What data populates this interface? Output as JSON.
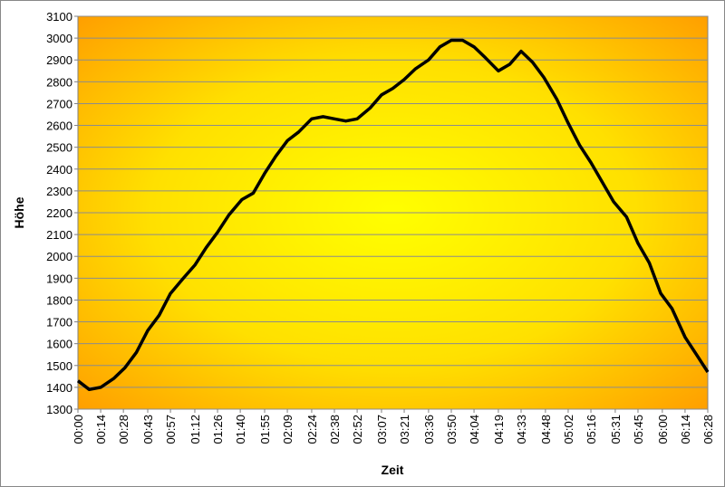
{
  "chart_data": {
    "type": "line",
    "xlabel": "Zeit",
    "ylabel": "Höhe",
    "x": [
      0,
      7,
      14,
      22,
      29,
      36,
      43,
      50,
      57,
      65,
      72,
      79,
      86,
      93,
      101,
      108,
      115,
      122,
      129,
      136,
      144,
      151,
      158,
      165,
      172,
      180,
      187,
      194,
      201,
      208,
      216,
      223,
      230,
      237,
      244,
      251,
      259,
      266,
      273,
      280,
      287,
      295,
      302,
      309,
      316,
      323,
      330,
      338,
      345,
      352,
      359,
      366,
      374,
      381,
      388
    ],
    "series": [
      {
        "name": "Höhe",
        "color": "#000000",
        "values": [
          1430,
          1390,
          1400,
          1440,
          1490,
          1560,
          1660,
          1730,
          1830,
          1900,
          1960,
          2040,
          2110,
          2190,
          2260,
          2290,
          2380,
          2460,
          2530,
          2570,
          2630,
          2640,
          2630,
          2620,
          2630,
          2680,
          2740,
          2770,
          2810,
          2860,
          2900,
          2960,
          2990,
          2990,
          2960,
          2910,
          2850,
          2880,
          2940,
          2890,
          2820,
          2720,
          2610,
          2510,
          2430,
          2340,
          2250,
          2180,
          2060,
          1970,
          1830,
          1760,
          1630,
          1550,
          1470
        ]
      }
    ],
    "xlim": [
      0,
      388
    ],
    "xticks": [
      {
        "value": 0,
        "label": "00:00"
      },
      {
        "value": 14,
        "label": "00:14"
      },
      {
        "value": 28,
        "label": "00:28"
      },
      {
        "value": 43,
        "label": "00:43"
      },
      {
        "value": 57,
        "label": "00:57"
      },
      {
        "value": 72,
        "label": "01:12"
      },
      {
        "value": 86,
        "label": "01:26"
      },
      {
        "value": 100,
        "label": "01:40"
      },
      {
        "value": 115,
        "label": "01:55"
      },
      {
        "value": 129,
        "label": "02:09"
      },
      {
        "value": 144,
        "label": "02:24"
      },
      {
        "value": 158,
        "label": "02:38"
      },
      {
        "value": 172,
        "label": "02:52"
      },
      {
        "value": 187,
        "label": "03:07"
      },
      {
        "value": 201,
        "label": "03:21"
      },
      {
        "value": 216,
        "label": "03:36"
      },
      {
        "value": 230,
        "label": "03:50"
      },
      {
        "value": 244,
        "label": "04:04"
      },
      {
        "value": 259,
        "label": "04:19"
      },
      {
        "value": 273,
        "label": "04:33"
      },
      {
        "value": 288,
        "label": "04:48"
      },
      {
        "value": 302,
        "label": "05:02"
      },
      {
        "value": 316,
        "label": "05:16"
      },
      {
        "value": 331,
        "label": "05:31"
      },
      {
        "value": 345,
        "label": "05:45"
      },
      {
        "value": 360,
        "label": "06:00"
      },
      {
        "value": 374,
        "label": "06:14"
      },
      {
        "value": 388,
        "label": "06:28"
      }
    ],
    "ylim": [
      1300,
      3100
    ],
    "yticks": [
      1300,
      1400,
      1500,
      1600,
      1700,
      1800,
      1900,
      2000,
      2100,
      2200,
      2300,
      2400,
      2500,
      2600,
      2700,
      2800,
      2900,
      3000,
      3100
    ],
    "grid": true
  }
}
